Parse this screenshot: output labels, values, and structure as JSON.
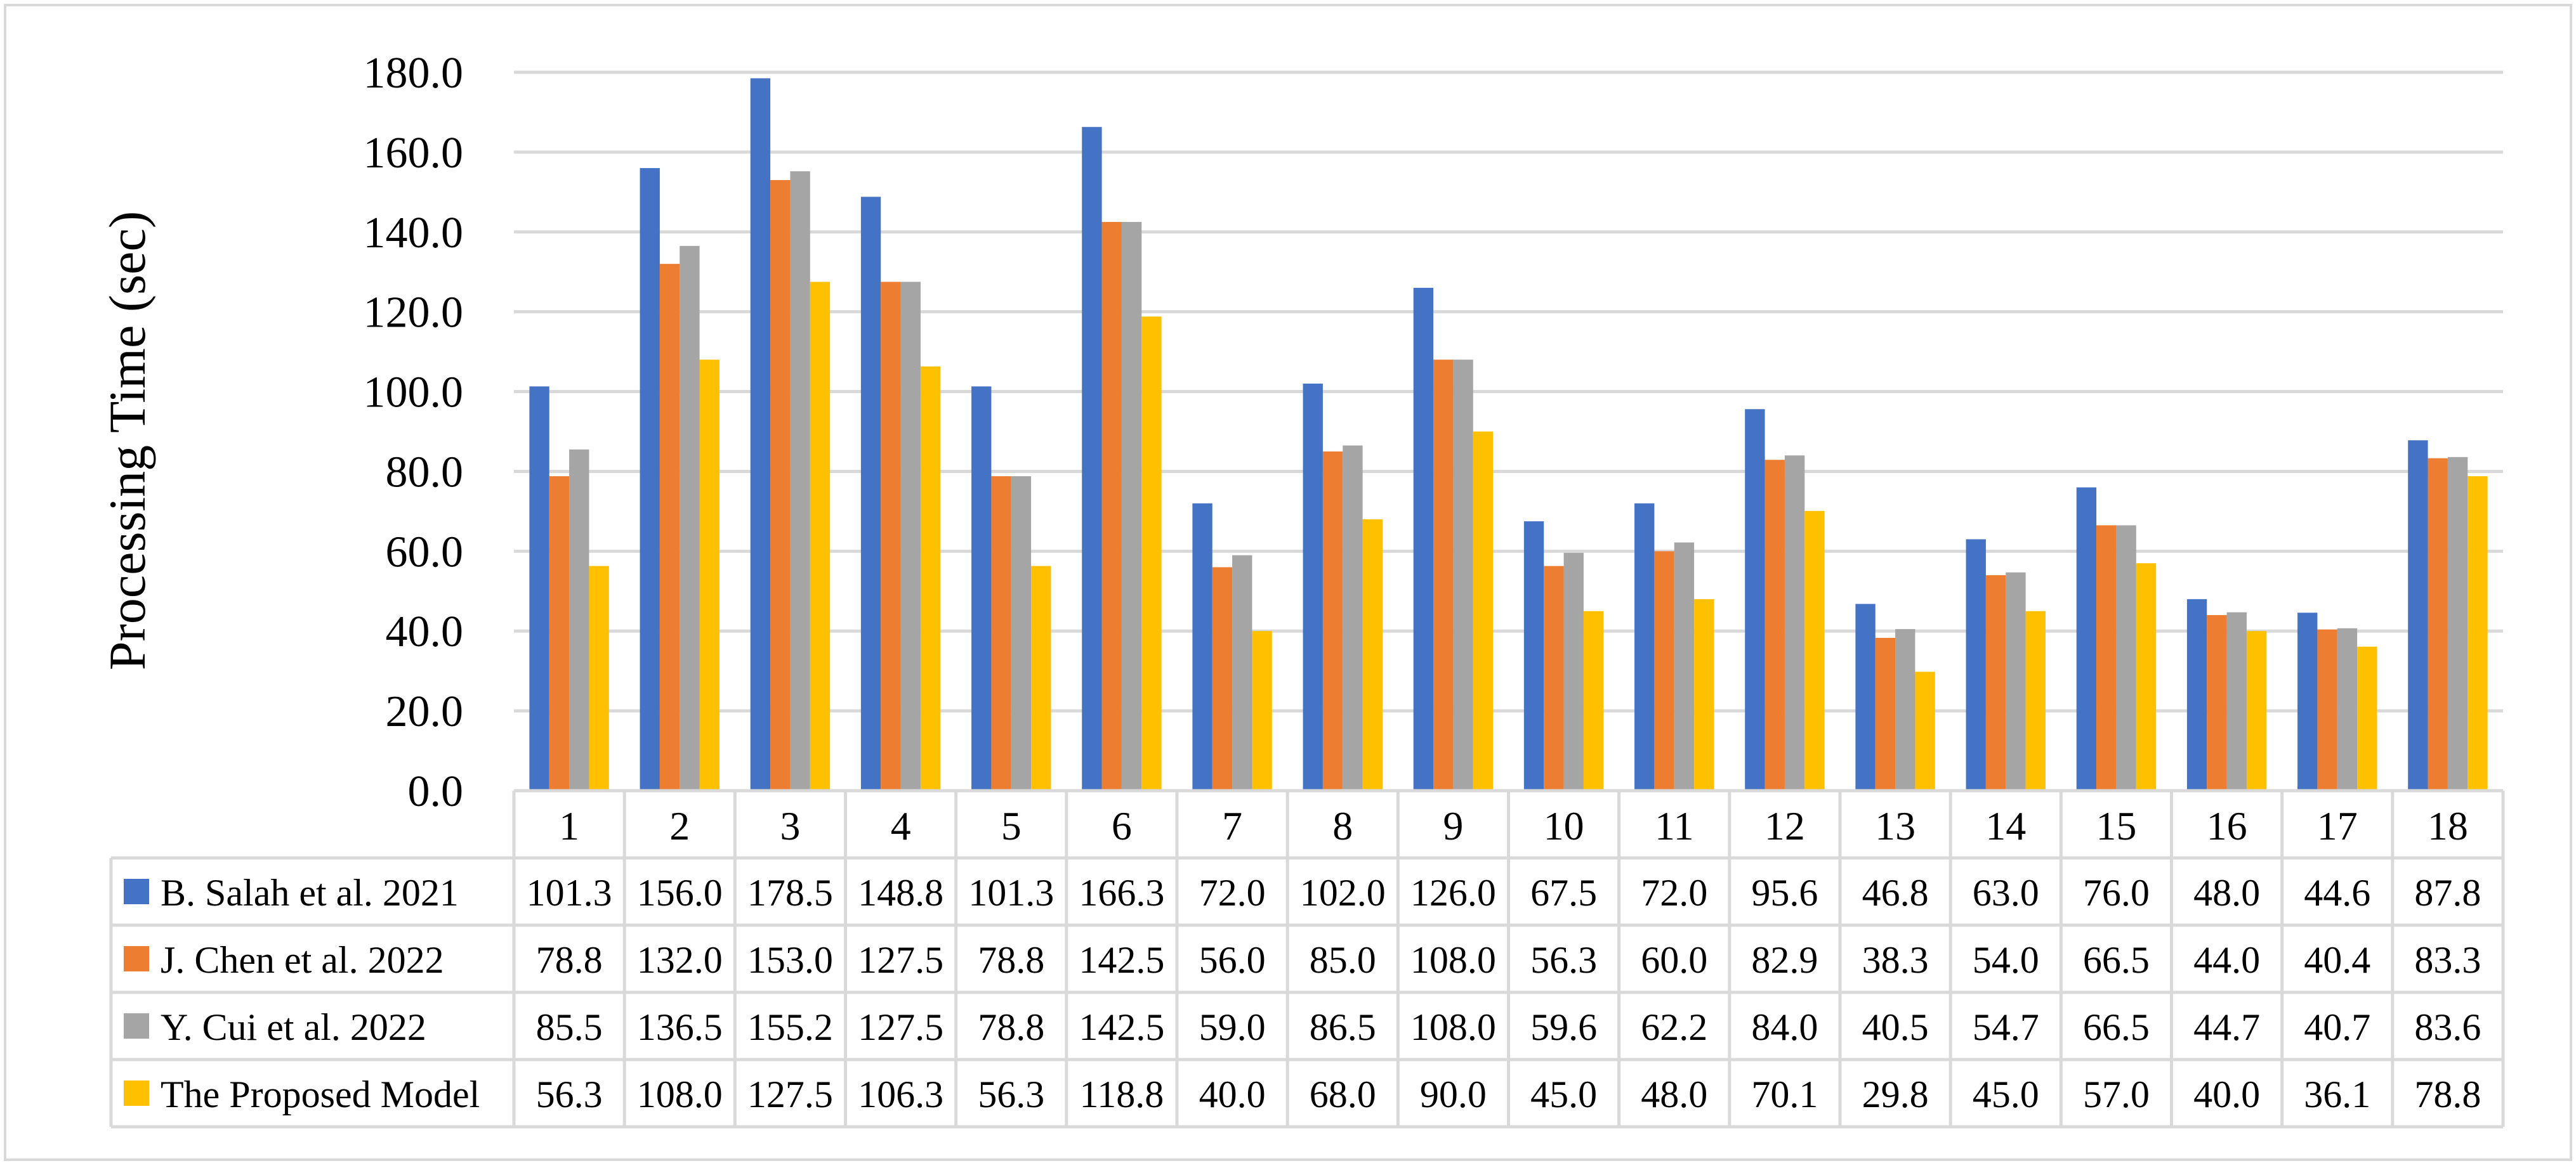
{
  "chart_data": {
    "type": "bar",
    "title": "",
    "xlabel": "",
    "ylabel": "Processing Time (sec)",
    "ylim": [
      0,
      180
    ],
    "yticks": [
      "0.0",
      "20.0",
      "40.0",
      "60.0",
      "80.0",
      "100.0",
      "120.0",
      "140.0",
      "160.0",
      "180.0"
    ],
    "grid": true,
    "legend": "data-table-left",
    "categories": [
      "1",
      "2",
      "3",
      "4",
      "5",
      "6",
      "7",
      "8",
      "9",
      "10",
      "11",
      "12",
      "13",
      "14",
      "15",
      "16",
      "17",
      "18"
    ],
    "series": [
      {
        "name": "B. Salah et al. 2021",
        "color": "#4472C4",
        "values": [
          101.3,
          156.0,
          178.5,
          148.8,
          101.3,
          166.3,
          72.0,
          102.0,
          126.0,
          67.5,
          72.0,
          95.6,
          46.8,
          63.0,
          76.0,
          48.0,
          44.6,
          87.8
        ],
        "labels": [
          "101.3",
          "156.0",
          "178.5",
          "148.8",
          "101.3",
          "166.3",
          "72.0",
          "102.0",
          "126.0",
          "67.5",
          "72.0",
          "95.6",
          "46.8",
          "63.0",
          "76.0",
          "48.0",
          "44.6",
          "87.8"
        ]
      },
      {
        "name": "J. Chen et al. 2022",
        "color": "#ED7D31",
        "values": [
          78.8,
          132.0,
          153.0,
          127.5,
          78.8,
          142.5,
          56.0,
          85.0,
          108.0,
          56.3,
          60.0,
          82.9,
          38.3,
          54.0,
          66.5,
          44.0,
          40.4,
          83.3
        ],
        "labels": [
          "78.8",
          "132.0",
          "153.0",
          "127.5",
          "78.8",
          "142.5",
          "56.0",
          "85.0",
          "108.0",
          "56.3",
          "60.0",
          "82.9",
          "38.3",
          "54.0",
          "66.5",
          "44.0",
          "40.4",
          "83.3"
        ]
      },
      {
        "name": "Y. Cui et al. 2022",
        "color": "#A5A5A5",
        "values": [
          85.5,
          136.5,
          155.2,
          127.5,
          78.8,
          142.5,
          59.0,
          86.5,
          108.0,
          59.6,
          62.2,
          84.0,
          40.5,
          54.7,
          66.5,
          44.7,
          40.7,
          83.6
        ],
        "labels": [
          "85.5",
          "136.5",
          "155.2",
          "127.5",
          "78.8",
          "142.5",
          "59.0",
          "86.5",
          "108.0",
          "59.6",
          "62.2",
          "84.0",
          "40.5",
          "54.7",
          "66.5",
          "44.7",
          "40.7",
          "83.6"
        ]
      },
      {
        "name": "The Proposed Model",
        "color": "#FFC000",
        "values": [
          56.3,
          108.0,
          127.5,
          106.3,
          56.3,
          118.8,
          40.0,
          68.0,
          90.0,
          45.0,
          48.0,
          70.1,
          29.8,
          45.0,
          57.0,
          40.0,
          36.1,
          78.8
        ],
        "labels": [
          "56.3",
          "108.0",
          "127.5",
          "106.3",
          "56.3",
          "118.8",
          "40.0",
          "68.0",
          "90.0",
          "45.0",
          "48.0",
          "70.1",
          "29.8",
          "45.0",
          "57.0",
          "40.0",
          "36.1",
          "78.8"
        ]
      }
    ]
  }
}
